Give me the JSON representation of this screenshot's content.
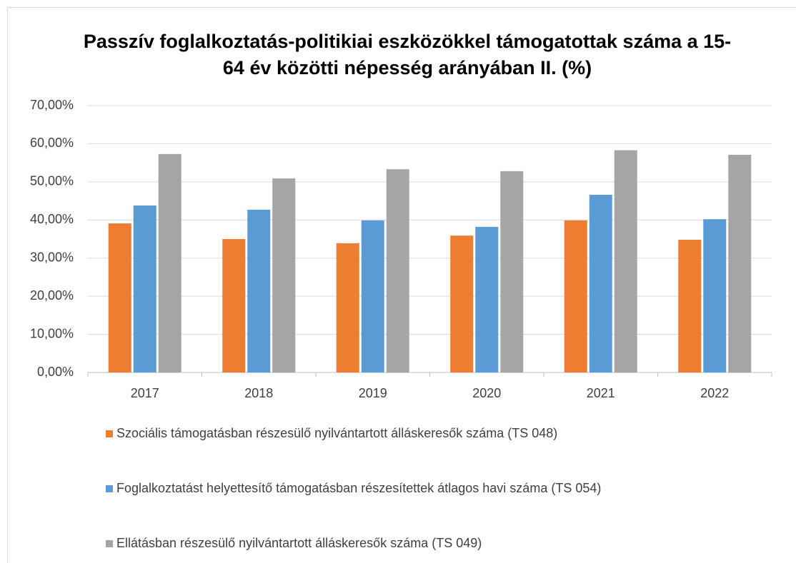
{
  "chart_data": {
    "type": "bar",
    "title": "Passzív foglalkoztatás-politikiai eszközökkel támogatottak száma a 15-64 év közötti népesség  arányában II. (%)",
    "categories": [
      "2017",
      "2018",
      "2019",
      "2020",
      "2021",
      "2022"
    ],
    "series": [
      {
        "name": "Szociális támogatásban részesülő nyilvántartott álláskeresők száma (TS 048)",
        "color": "#ed7d31",
        "values": [
          39.1,
          35.0,
          33.9,
          35.9,
          39.9,
          34.8
        ]
      },
      {
        "name": "Foglalkoztatást helyettesítő támogatásban részesítettek átlagos havi száma (TS 054)",
        "color": "#5b9bd5",
        "values": [
          43.8,
          42.7,
          39.9,
          38.2,
          46.6,
          40.2
        ]
      },
      {
        "name": "Ellátásban részesülő nyilvántartott álláskeresők száma (TS 049)",
        "color": "#a5a5a5",
        "values": [
          57.3,
          50.9,
          53.3,
          52.8,
          58.3,
          57.1
        ]
      }
    ],
    "ylim": [
      0,
      70
    ],
    "yticks": [
      {
        "value": 0,
        "label": "0,00%"
      },
      {
        "value": 10,
        "label": "10,00%"
      },
      {
        "value": 20,
        "label": "20,00%"
      },
      {
        "value": 30,
        "label": "30,00%"
      },
      {
        "value": 40,
        "label": "40,00%"
      },
      {
        "value": 50,
        "label": "50,00%"
      },
      {
        "value": 60,
        "label": "60,00%"
      },
      {
        "value": 70,
        "label": "70,00%"
      }
    ],
    "grid": true,
    "legend": "bottom"
  }
}
